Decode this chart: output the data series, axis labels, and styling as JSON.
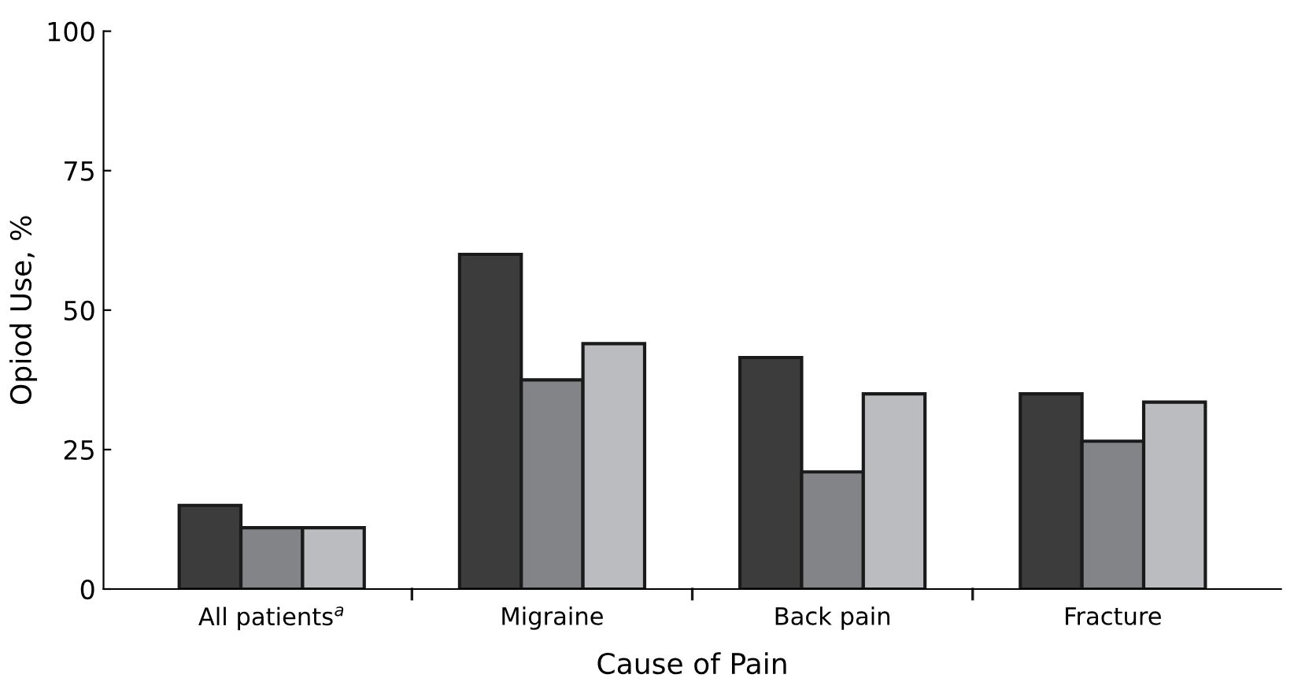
{
  "chart_data": {
    "type": "bar",
    "xlabel": "Cause of Pain",
    "ylabel": "Opiod Use, %",
    "categories": [
      "All patients$^{a}$",
      "Migraine",
      "Back pain",
      "Fracture"
    ],
    "series": [
      {
        "color": "#3c3c3c",
        "values": [
          15,
          60,
          41.5,
          35
        ]
      },
      {
        "color": "#838488",
        "values": [
          11,
          37.5,
          21,
          26.5
        ]
      },
      {
        "color": "#bbbcc0",
        "values": [
          11,
          44,
          35,
          33.5
        ]
      }
    ],
    "ylim": [
      0,
      100
    ],
    "yticks": [
      0,
      25,
      50,
      75,
      100
    ],
    "grid": false,
    "legend": false
  }
}
